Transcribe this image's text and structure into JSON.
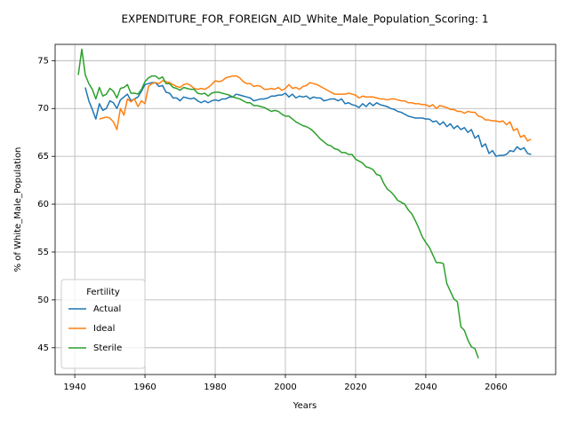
{
  "chart_data": {
    "type": "line",
    "title": "EXPENDITURE_FOR_FOREIGN_AID_White_Male_Population_Scoring: 1",
    "xlabel": "Years",
    "ylabel": "% of White_Male_Population",
    "legend_title": "Fertility",
    "legend": "lower left",
    "grid": true,
    "xlim": [
      1934.4,
      2077
    ],
    "ylim": [
      42.2,
      76.7
    ],
    "xticks": [
      1940,
      1960,
      1980,
      2000,
      2020,
      2040,
      2060
    ],
    "yticks": [
      45,
      50,
      55,
      60,
      65,
      70,
      75
    ],
    "x": [
      1941,
      1942,
      1943,
      1944,
      1945,
      1946,
      1947,
      1948,
      1949,
      1950,
      1951,
      1952,
      1953,
      1954,
      1955,
      1956,
      1957,
      1958,
      1959,
      1960,
      1961,
      1962,
      1963,
      1964,
      1965,
      1966,
      1967,
      1968,
      1969,
      1970,
      1971,
      1972,
      1973,
      1974,
      1975,
      1976,
      1977,
      1978,
      1979,
      1980,
      1981,
      1982,
      1983,
      1984,
      1985,
      1986,
      1987,
      1988,
      1989,
      1990,
      1991,
      1992,
      1993,
      1994,
      1995,
      1996,
      1997,
      1998,
      1999,
      2000,
      2001,
      2002,
      2003,
      2004,
      2005,
      2006,
      2007,
      2008,
      2009,
      2010,
      2011,
      2012,
      2013,
      2014,
      2015,
      2016,
      2017,
      2018,
      2019,
      2020,
      2021,
      2022,
      2023,
      2024,
      2025,
      2026,
      2027,
      2028,
      2029,
      2030,
      2031,
      2032,
      2033,
      2034,
      2035,
      2036,
      2037,
      2038,
      2039,
      2040,
      2041,
      2042,
      2043,
      2044,
      2045,
      2046,
      2047,
      2048,
      2049,
      2050,
      2051,
      2052,
      2053,
      2054,
      2055,
      2056,
      2057,
      2058,
      2059,
      2060,
      2061,
      2062,
      2063,
      2064,
      2065,
      2066,
      2067,
      2068,
      2069,
      2070
    ],
    "series": [
      {
        "name": "Actual",
        "color": "#1f77b4",
        "values": [
          null,
          null,
          72.2,
          70.8,
          69.9,
          68.9,
          70.5,
          69.8,
          70.0,
          70.8,
          70.6,
          70.0,
          70.9,
          71.2,
          71.5,
          70.8,
          71.0,
          71.2,
          71.8,
          72.5,
          72.6,
          72.7,
          72.7,
          72.3,
          72.4,
          71.7,
          71.6,
          71.1,
          71.1,
          70.8,
          71.2,
          71.1,
          71.0,
          71.1,
          70.8,
          70.6,
          70.8,
          70.6,
          70.8,
          70.9,
          70.8,
          71.0,
          71.0,
          71.2,
          71.2,
          71.5,
          71.4,
          71.3,
          71.2,
          71.1,
          70.8,
          70.9,
          71.0,
          71.0,
          71.1,
          71.3,
          71.3,
          71.4,
          71.4,
          71.6,
          71.2,
          71.5,
          71.1,
          71.3,
          71.2,
          71.3,
          71.0,
          71.2,
          71.1,
          71.1,
          70.8,
          70.9,
          71.0,
          71.0,
          70.8,
          71.0,
          70.5,
          70.6,
          70.4,
          70.3,
          70.1,
          70.5,
          70.2,
          70.6,
          70.3,
          70.6,
          70.4,
          70.3,
          70.2,
          70.0,
          69.9,
          69.7,
          69.6,
          69.4,
          69.2,
          69.1,
          69.0,
          69.0,
          69.0,
          68.9,
          68.9,
          68.6,
          68.7,
          68.3,
          68.6,
          68.1,
          68.4,
          67.9,
          68.2,
          67.8,
          68.0,
          67.5,
          67.8,
          66.9,
          67.2,
          66.0,
          66.3,
          65.3,
          65.6,
          65.0,
          65.1,
          65.1,
          65.2,
          65.6,
          65.5,
          66.0,
          65.7,
          65.9,
          65.3,
          65.2
        ]
      },
      {
        "name": "Ideal",
        "color": "#ff7f0e",
        "values": [
          null,
          null,
          null,
          null,
          null,
          null,
          68.9,
          69.0,
          69.1,
          69.0,
          68.6,
          67.8,
          70.0,
          69.3,
          71.0,
          70.7,
          71.0,
          70.2,
          70.8,
          70.5,
          72.3,
          72.6,
          72.7,
          72.6,
          72.9,
          72.8,
          72.7,
          72.5,
          72.3,
          72.2,
          72.5,
          72.6,
          72.4,
          72.1,
          72.0,
          72.1,
          72.0,
          72.2,
          72.5,
          72.9,
          72.8,
          72.9,
          73.2,
          73.3,
          73.4,
          73.4,
          73.2,
          72.8,
          72.6,
          72.6,
          72.3,
          72.4,
          72.3,
          72.0,
          72.0,
          72.1,
          72.0,
          72.2,
          71.9,
          72.1,
          72.5,
          72.1,
          72.2,
          72.0,
          72.3,
          72.4,
          72.7,
          72.6,
          72.5,
          72.3,
          72.1,
          71.9,
          71.7,
          71.5,
          71.5,
          71.5,
          71.5,
          71.6,
          71.5,
          71.4,
          71.1,
          71.3,
          71.2,
          71.2,
          71.2,
          71.1,
          71.0,
          71.0,
          70.9,
          71.0,
          71.0,
          70.9,
          70.8,
          70.8,
          70.6,
          70.6,
          70.5,
          70.5,
          70.4,
          70.4,
          70.2,
          70.4,
          70.0,
          70.3,
          70.2,
          70.1,
          69.9,
          69.9,
          69.7,
          69.7,
          69.5,
          69.7,
          69.6,
          69.6,
          69.2,
          69.1,
          68.8,
          68.8,
          68.7,
          68.7,
          68.6,
          68.7,
          68.3,
          68.6,
          67.7,
          67.9,
          67.0,
          67.2,
          66.6,
          66.8
        ]
      },
      {
        "name": "Sterile",
        "color": "#2ca02c",
        "values": [
          73.5,
          76.2,
          73.5,
          72.6,
          72.0,
          71.0,
          72.2,
          71.3,
          71.5,
          72.1,
          71.8,
          71.1,
          72.1,
          72.2,
          72.5,
          71.6,
          71.6,
          71.5,
          72.0,
          72.8,
          73.2,
          73.4,
          73.4,
          73.1,
          73.3,
          72.6,
          72.6,
          72.2,
          72.1,
          71.9,
          72.2,
          72.1,
          72.0,
          72.0,
          71.6,
          71.5,
          71.6,
          71.3,
          71.6,
          71.7,
          71.7,
          71.6,
          71.5,
          71.4,
          71.2,
          71.1,
          71.0,
          70.8,
          70.6,
          70.6,
          70.3,
          70.3,
          70.2,
          70.1,
          69.9,
          69.7,
          69.8,
          69.7,
          69.4,
          69.2,
          69.2,
          68.9,
          68.6,
          68.4,
          68.2,
          68.1,
          67.9,
          67.6,
          67.2,
          66.8,
          66.5,
          66.2,
          66.1,
          65.8,
          65.7,
          65.4,
          65.4,
          65.2,
          65.2,
          64.7,
          64.5,
          64.3,
          63.9,
          63.8,
          63.6,
          63.1,
          63.0,
          62.2,
          61.6,
          61.3,
          60.9,
          60.4,
          60.2,
          60.0,
          59.4,
          59.0,
          58.3,
          57.5,
          56.6,
          56.0,
          55.5,
          54.7,
          53.9,
          53.9,
          53.8,
          51.7,
          50.9,
          50.1,
          49.8,
          47.2,
          46.8,
          45.8,
          45.1,
          44.9,
          43.9,
          null,
          null,
          null,
          null,
          null,
          null,
          null,
          null,
          null,
          null,
          null,
          null,
          null,
          null,
          null
        ]
      }
    ]
  }
}
